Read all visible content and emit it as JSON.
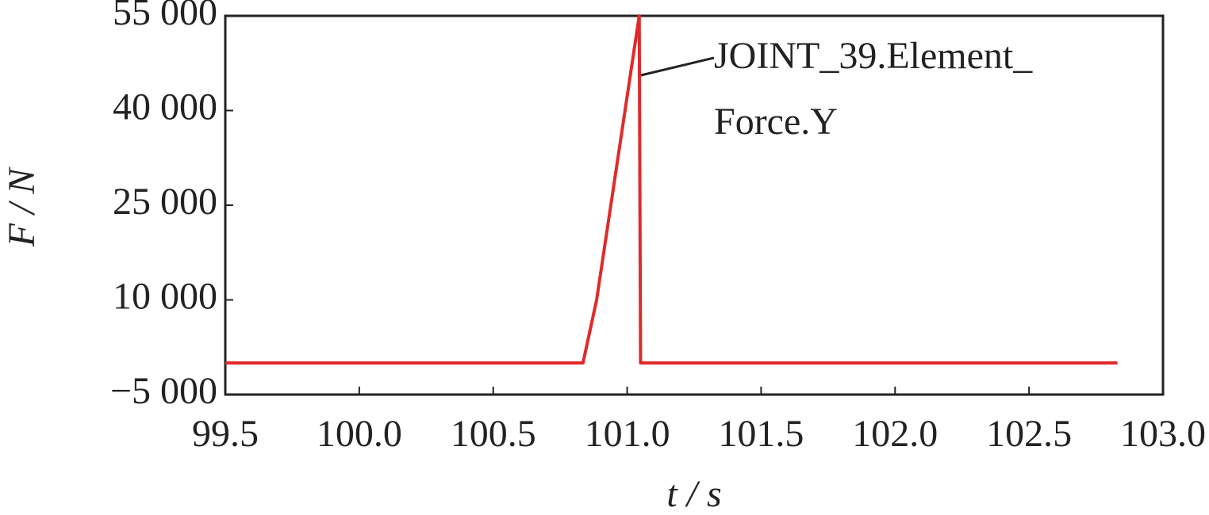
{
  "chart_data": {
    "type": "line",
    "xlabel": "t / s",
    "ylabel": "F / N",
    "annotation": [
      "JOINT_39.Element_",
      "Force.Y"
    ],
    "x": [
      99.5,
      100.835,
      100.886,
      101.045,
      101.05,
      102.83
    ],
    "series": [
      {
        "name": "JOINT_39.Element_Force.Y",
        "color": "#e02a2a",
        "values": [
          0,
          0,
          10000,
          55000,
          0,
          0
        ]
      }
    ],
    "xlim": [
      99.5,
      103.0
    ],
    "xticks": [
      99.5,
      {
        "value": 100.0,
        "label": "100.0"
      },
      100.5,
      {
        "value": 101.0,
        "label": "101.0"
      },
      101.5,
      {
        "value": 102.0,
        "label": "102.0"
      },
      102.5,
      {
        "value": 103.0,
        "label": "103.0"
      }
    ],
    "ylim": [
      -5000,
      55000
    ],
    "yticks": [
      {
        "value": -5000,
        "label": "−5 000"
      },
      {
        "value": 10000,
        "label": "10 000"
      },
      {
        "value": 25000,
        "label": "25 000"
      },
      {
        "value": 40000,
        "label": "40 000"
      },
      {
        "value": 55000,
        "label": "55 000"
      }
    ],
    "grid": false
  }
}
